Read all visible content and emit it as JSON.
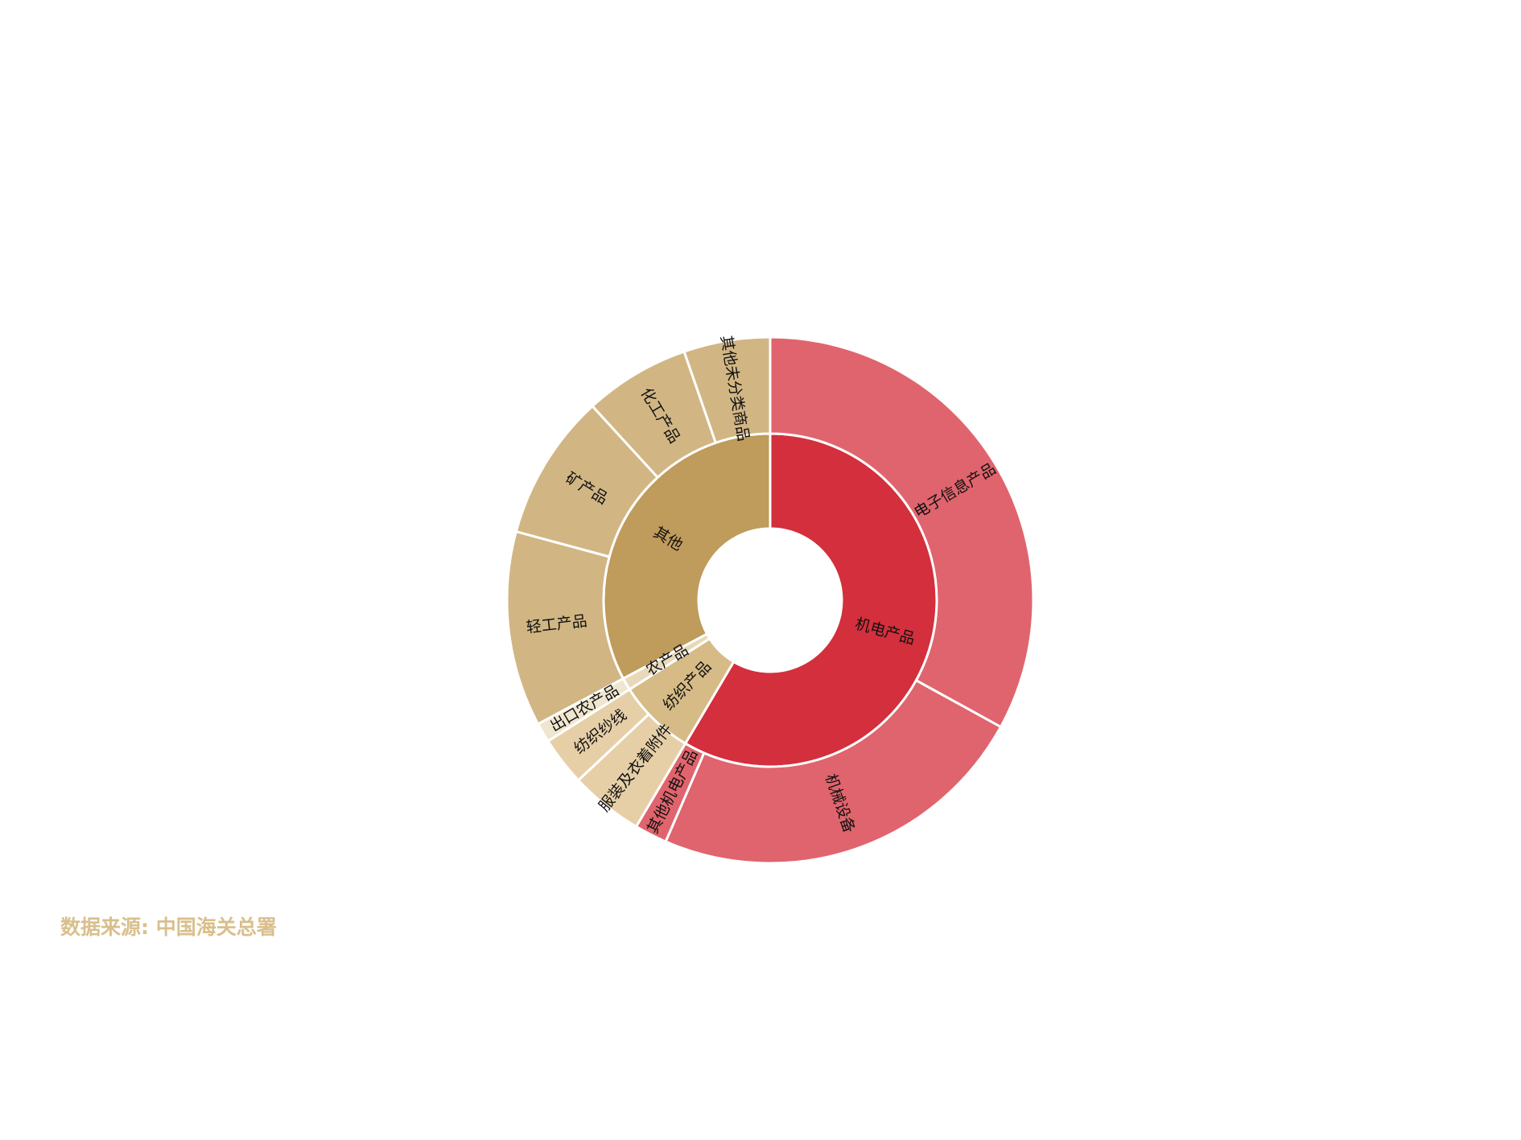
{
  "chart_data": {
    "type": "sunburst",
    "colors": {
      "electromech_inner": "#d32f3c",
      "electromech_outer": "#e0646d",
      "other_inner": "#bf9b5c",
      "other_outer": "#d1b684",
      "textile_inner": "#d6bb86",
      "textile_outer": "#e6cfa7",
      "agri_inner": "#e8d9b8",
      "agri_outer": "#f0e6cf",
      "stroke": "#ffffff"
    },
    "inner": [
      {
        "name": "机电产品",
        "value": 58.5,
        "color_key": "electromech_inner"
      },
      {
        "name": "纺织产品",
        "value": 7.5,
        "color_key": "textile_inner"
      },
      {
        "name": "农产品",
        "value": 1.2,
        "color_key": "agri_inner"
      },
      {
        "name": "其他",
        "value": 32.8,
        "color_key": "other_inner"
      }
    ],
    "outer": [
      {
        "name": "电子信息产品",
        "parent": "机电产品",
        "value": 33.0,
        "color_key": "electromech_outer"
      },
      {
        "name": "机械设备",
        "parent": "机电产品",
        "value": 23.5,
        "color_key": "electromech_outer"
      },
      {
        "name": "其他机电产品",
        "parent": "机电产品",
        "value": 2.0,
        "color_key": "electromech_outer"
      },
      {
        "name": "服装及衣着附件",
        "parent": "纺织产品",
        "value": 4.5,
        "color_key": "textile_outer"
      },
      {
        "name": "纺织纱线",
        "parent": "纺织产品",
        "value": 3.0,
        "color_key": "textile_outer"
      },
      {
        "name": "出口农产品",
        "parent": "农产品",
        "value": 1.2,
        "color_key": "agri_outer"
      },
      {
        "name": "轻工产品",
        "parent": "其他",
        "value": 12.0,
        "color_key": "other_outer"
      },
      {
        "name": "矿产品",
        "parent": "其他",
        "value": 9.0,
        "color_key": "other_outer"
      },
      {
        "name": "化工产品",
        "parent": "其他",
        "value": 6.5,
        "color_key": "other_outer"
      },
      {
        "name": "其他未分类商品",
        "parent": "其他",
        "value": 5.3,
        "color_key": "other_outer"
      }
    ]
  },
  "source": {
    "text": "数据来源: 中国海关总署"
  }
}
